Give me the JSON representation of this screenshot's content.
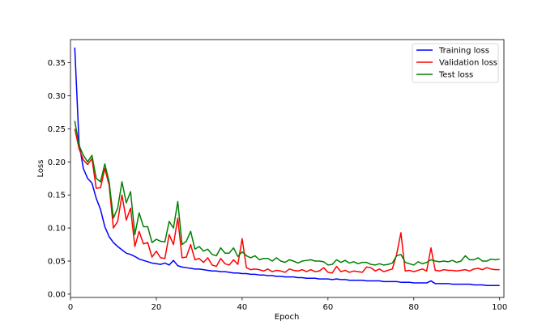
{
  "chart_data": {
    "type": "line",
    "title": "",
    "xlabel": "Epoch",
    "ylabel": "Loss",
    "xlim": [
      0,
      101
    ],
    "ylim": [
      -0.005,
      0.385
    ],
    "xticks": [
      0,
      20,
      40,
      60,
      80,
      100
    ],
    "yticks": [
      0.0,
      0.05,
      0.1,
      0.15,
      0.2,
      0.25,
      0.3,
      0.35
    ],
    "xtick_labels": [
      "0",
      "20",
      "40",
      "60",
      "80",
      "100"
    ],
    "ytick_labels": [
      "0.00",
      "0.05",
      "0.10",
      "0.15",
      "0.20",
      "0.25",
      "0.30",
      "0.35"
    ],
    "grid": false,
    "legend_position": "top-right",
    "x": [
      1,
      2,
      3,
      4,
      5,
      6,
      7,
      8,
      9,
      10,
      11,
      12,
      13,
      14,
      15,
      16,
      17,
      18,
      19,
      20,
      21,
      22,
      23,
      24,
      25,
      26,
      27,
      28,
      29,
      30,
      31,
      32,
      33,
      34,
      35,
      36,
      37,
      38,
      39,
      40,
      41,
      42,
      43,
      44,
      45,
      46,
      47,
      48,
      49,
      50,
      51,
      52,
      53,
      54,
      55,
      56,
      57,
      58,
      59,
      60,
      61,
      62,
      63,
      64,
      65,
      66,
      67,
      68,
      69,
      70,
      71,
      72,
      73,
      74,
      75,
      76,
      77,
      78,
      79,
      80,
      81,
      82,
      83,
      84,
      85,
      86,
      87,
      88,
      89,
      90,
      91,
      92,
      93,
      94,
      95,
      96,
      97,
      98,
      99,
      100
    ],
    "series": [
      {
        "name": "Training loss",
        "color": "#0000ff",
        "values": [
          0.373,
          0.228,
          0.19,
          0.175,
          0.168,
          0.145,
          0.128,
          0.102,
          0.087,
          0.078,
          0.072,
          0.067,
          0.062,
          0.06,
          0.057,
          0.053,
          0.051,
          0.049,
          0.047,
          0.046,
          0.045,
          0.047,
          0.044,
          0.051,
          0.043,
          0.041,
          0.04,
          0.039,
          0.038,
          0.038,
          0.037,
          0.036,
          0.035,
          0.035,
          0.034,
          0.034,
          0.033,
          0.032,
          0.032,
          0.031,
          0.031,
          0.03,
          0.03,
          0.029,
          0.029,
          0.028,
          0.028,
          0.027,
          0.027,
          0.026,
          0.026,
          0.026,
          0.025,
          0.025,
          0.024,
          0.024,
          0.024,
          0.023,
          0.023,
          0.023,
          0.022,
          0.023,
          0.022,
          0.022,
          0.021,
          0.021,
          0.021,
          0.021,
          0.02,
          0.02,
          0.02,
          0.02,
          0.019,
          0.019,
          0.019,
          0.019,
          0.018,
          0.018,
          0.018,
          0.017,
          0.017,
          0.017,
          0.017,
          0.02,
          0.016,
          0.016,
          0.016,
          0.016,
          0.015,
          0.015,
          0.015,
          0.015,
          0.015,
          0.014,
          0.014,
          0.014,
          0.013,
          0.013,
          0.013,
          0.013
        ]
      },
      {
        "name": "Validation loss",
        "color": "#ff0000",
        "values": [
          0.25,
          0.22,
          0.203,
          0.196,
          0.205,
          0.16,
          0.161,
          0.19,
          0.165,
          0.1,
          0.11,
          0.15,
          0.112,
          0.13,
          0.072,
          0.095,
          0.076,
          0.078,
          0.056,
          0.065,
          0.055,
          0.054,
          0.09,
          0.075,
          0.115,
          0.055,
          0.056,
          0.075,
          0.052,
          0.054,
          0.048,
          0.055,
          0.044,
          0.042,
          0.054,
          0.046,
          0.044,
          0.052,
          0.045,
          0.084,
          0.04,
          0.037,
          0.038,
          0.037,
          0.035,
          0.038,
          0.034,
          0.036,
          0.035,
          0.033,
          0.038,
          0.036,
          0.035,
          0.037,
          0.034,
          0.037,
          0.034,
          0.035,
          0.04,
          0.033,
          0.032,
          0.042,
          0.034,
          0.036,
          0.033,
          0.035,
          0.034,
          0.033,
          0.041,
          0.04,
          0.035,
          0.038,
          0.034,
          0.036,
          0.038,
          0.06,
          0.093,
          0.035,
          0.036,
          0.034,
          0.036,
          0.038,
          0.035,
          0.07,
          0.036,
          0.035,
          0.037,
          0.036,
          0.036,
          0.035,
          0.036,
          0.037,
          0.035,
          0.038,
          0.039,
          0.037,
          0.04,
          0.038,
          0.037,
          0.037
        ]
      },
      {
        "name": "Test loss",
        "color": "#008000",
        "values": [
          0.262,
          0.225,
          0.21,
          0.2,
          0.21,
          0.175,
          0.17,
          0.197,
          0.17,
          0.115,
          0.13,
          0.17,
          0.138,
          0.155,
          0.09,
          0.123,
          0.102,
          0.102,
          0.078,
          0.083,
          0.08,
          0.079,
          0.11,
          0.1,
          0.14,
          0.075,
          0.08,
          0.095,
          0.068,
          0.072,
          0.065,
          0.068,
          0.06,
          0.058,
          0.07,
          0.062,
          0.062,
          0.07,
          0.057,
          0.064,
          0.058,
          0.055,
          0.058,
          0.052,
          0.054,
          0.054,
          0.05,
          0.055,
          0.05,
          0.048,
          0.052,
          0.05,
          0.047,
          0.05,
          0.051,
          0.052,
          0.05,
          0.05,
          0.049,
          0.044,
          0.045,
          0.052,
          0.048,
          0.051,
          0.047,
          0.049,
          0.046,
          0.048,
          0.048,
          0.045,
          0.044,
          0.046,
          0.044,
          0.045,
          0.047,
          0.058,
          0.06,
          0.048,
          0.046,
          0.044,
          0.049,
          0.046,
          0.048,
          0.052,
          0.05,
          0.049,
          0.05,
          0.049,
          0.051,
          0.048,
          0.05,
          0.058,
          0.052,
          0.052,
          0.055,
          0.05,
          0.05,
          0.053,
          0.052,
          0.053
        ]
      }
    ]
  }
}
